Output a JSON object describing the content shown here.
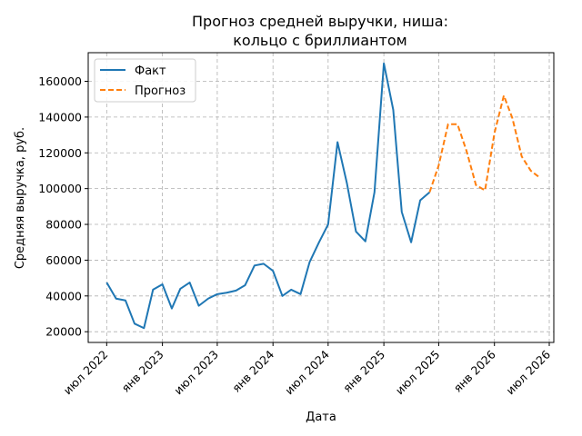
{
  "chart_data": {
    "type": "line",
    "title_line1": "Прогноз средней выручки, ниша:",
    "title_line2": "кольцо с бриллиантом",
    "xlabel": "Дата",
    "ylabel": "Средняя выручка, руб.",
    "ylim": [
      14000,
      176000
    ],
    "xlim": [
      "2022-05-01",
      "2026-07-16"
    ],
    "grid": true,
    "legend_position": "top-left",
    "x_ticks": [
      {
        "label": "июл 2022",
        "date": "2022-07-01"
      },
      {
        "label": "янв 2023",
        "date": "2023-01-01"
      },
      {
        "label": "июл 2023",
        "date": "2023-07-01"
      },
      {
        "label": "янв 2024",
        "date": "2024-01-01"
      },
      {
        "label": "июл 2024",
        "date": "2024-07-01"
      },
      {
        "label": "янв 2025",
        "date": "2025-01-01"
      },
      {
        "label": "июл 2025",
        "date": "2025-07-01"
      },
      {
        "label": "янв 2026",
        "date": "2026-01-01"
      },
      {
        "label": "июл 2026",
        "date": "2026-07-01"
      }
    ],
    "y_ticks": [
      {
        "label": "20000",
        "value": 20000
      },
      {
        "label": "40000",
        "value": 40000
      },
      {
        "label": "60000",
        "value": 60000
      },
      {
        "label": "80000",
        "value": 80000
      },
      {
        "label": "100000",
        "value": 100000
      },
      {
        "label": "120000",
        "value": 120000
      },
      {
        "label": "140000",
        "value": 140000
      },
      {
        "label": "160000",
        "value": 160000
      }
    ],
    "series": [
      {
        "name": "Факт",
        "color": "#1f77b4",
        "dash": "solid",
        "points": [
          {
            "x": "2022-07-01",
            "y": 47500
          },
          {
            "x": "2022-08-01",
            "y": 38500
          },
          {
            "x": "2022-09-01",
            "y": 37500
          },
          {
            "x": "2022-10-01",
            "y": 24500
          },
          {
            "x": "2022-11-01",
            "y": 22000
          },
          {
            "x": "2022-12-01",
            "y": 43500
          },
          {
            "x": "2023-01-01",
            "y": 46500
          },
          {
            "x": "2023-02-01",
            "y": 33000
          },
          {
            "x": "2023-03-01",
            "y": 44000
          },
          {
            "x": "2023-04-01",
            "y": 47500
          },
          {
            "x": "2023-05-01",
            "y": 34500
          },
          {
            "x": "2023-06-01",
            "y": 38500
          },
          {
            "x": "2023-07-01",
            "y": 41000
          },
          {
            "x": "2023-08-01",
            "y": 41800
          },
          {
            "x": "2023-09-01",
            "y": 43000
          },
          {
            "x": "2023-10-01",
            "y": 46000
          },
          {
            "x": "2023-11-01",
            "y": 57000
          },
          {
            "x": "2023-12-01",
            "y": 58000
          },
          {
            "x": "2024-01-01",
            "y": 54000
          },
          {
            "x": "2024-02-01",
            "y": 40000
          },
          {
            "x": "2024-03-01",
            "y": 43500
          },
          {
            "x": "2024-04-01",
            "y": 41000
          },
          {
            "x": "2024-05-01",
            "y": 59000
          },
          {
            "x": "2024-06-01",
            "y": 70000
          },
          {
            "x": "2024-07-01",
            "y": 80000
          },
          {
            "x": "2024-08-01",
            "y": 126000
          },
          {
            "x": "2024-09-01",
            "y": 103000
          },
          {
            "x": "2024-10-01",
            "y": 76000
          },
          {
            "x": "2024-11-01",
            "y": 70500
          },
          {
            "x": "2024-12-01",
            "y": 98000
          },
          {
            "x": "2025-01-01",
            "y": 170000
          },
          {
            "x": "2025-02-01",
            "y": 144000
          },
          {
            "x": "2025-03-01",
            "y": 87000
          },
          {
            "x": "2025-04-01",
            "y": 70000
          },
          {
            "x": "2025-05-01",
            "y": 93500
          },
          {
            "x": "2025-06-01",
            "y": 98000
          }
        ]
      },
      {
        "name": "Прогноз",
        "color": "#ff7f0e",
        "dash": "dashed",
        "points": [
          {
            "x": "2025-06-01",
            "y": 98000
          },
          {
            "x": "2025-07-01",
            "y": 113000
          },
          {
            "x": "2025-08-01",
            "y": 136000
          },
          {
            "x": "2025-09-01",
            "y": 136000
          },
          {
            "x": "2025-10-01",
            "y": 121000
          },
          {
            "x": "2025-11-01",
            "y": 102000
          },
          {
            "x": "2025-12-01",
            "y": 99000
          },
          {
            "x": "2026-01-01",
            "y": 131000
          },
          {
            "x": "2026-02-01",
            "y": 152000
          },
          {
            "x": "2026-03-01",
            "y": 139500
          },
          {
            "x": "2026-04-01",
            "y": 118000
          },
          {
            "x": "2026-05-01",
            "y": 110000
          },
          {
            "x": "2026-06-01",
            "y": 106000
          }
        ]
      }
    ]
  }
}
